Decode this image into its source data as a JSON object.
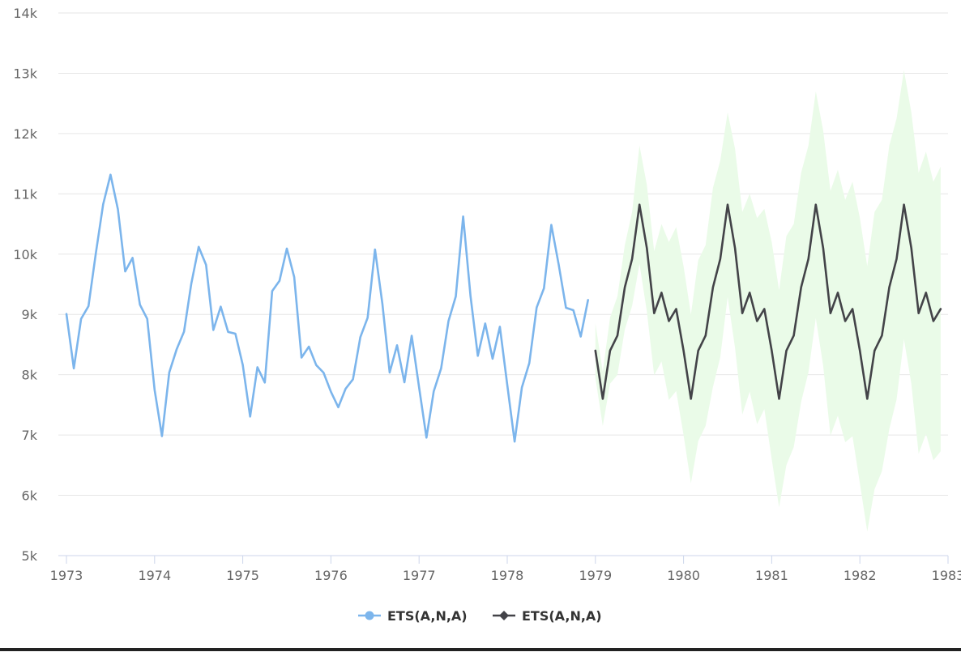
{
  "chart_data": {
    "type": "line",
    "title": "",
    "xlabel": "",
    "ylabel": "",
    "xlim": [
      1973,
      1983
    ],
    "ylim": [
      5000,
      14000
    ],
    "x_ticks": [
      "1973",
      "1974",
      "1975",
      "1976",
      "1977",
      "1978",
      "1979",
      "1980",
      "1981",
      "1982",
      "1983"
    ],
    "y_ticks": [
      "5k",
      "6k",
      "7k",
      "8k",
      "9k",
      "10k",
      "11k",
      "12k",
      "13k",
      "14k"
    ],
    "grid": true,
    "legend_position": "bottom-center",
    "series": [
      {
        "name": "ETS(A,N,A)",
        "role": "actual",
        "color": "#7cb5ec",
        "marker": "circle",
        "x_start": 1973,
        "step": 0.0833333,
        "values": [
          9007,
          8106,
          8928,
          9137,
          10017,
          10826,
          11317,
          10744,
          9713,
          9938,
          9161,
          8927,
          7750,
          6981,
          8038,
          8422,
          8714,
          9512,
          10120,
          9823,
          8743,
          9129,
          8710,
          8680,
          8162,
          7306,
          8124,
          7870,
          9387,
          9556,
          10093,
          9620,
          8285,
          8466,
          8160,
          8034,
          7717,
          7461,
          7767,
          7925,
          8623,
          8945,
          10078,
          9179,
          8037,
          8488,
          7874,
          8647,
          7792,
          6957,
          7726,
          8106,
          8890,
          9299,
          10625,
          9302,
          8314,
          8850,
          8265,
          8796,
          7836,
          6892,
          7791,
          8192,
          9115,
          9434,
          10484,
          9827,
          9110,
          9070,
          8633,
          9240
        ]
      },
      {
        "name": "ETS(A,N,A)",
        "role": "forecast",
        "color": "#434348",
        "marker": "diamond",
        "x_start": 1979,
        "step": 0.0833333,
        "values": [
          8400,
          7600,
          8400,
          8650,
          9450,
          9920,
          10820,
          10100,
          9020,
          9360,
          8890,
          9090,
          8400,
          7600,
          8400,
          8650,
          9450,
          9920,
          10820,
          10100,
          9020,
          9360,
          8890,
          9090,
          8400,
          7600,
          8400,
          8650,
          9450,
          9920,
          10820,
          10100,
          9020,
          9360,
          8890,
          9090,
          8400,
          7600,
          8400,
          8650,
          9450,
          9920,
          10820,
          10100,
          9020,
          9360,
          8890,
          9090
        ]
      }
    ],
    "interval": {
      "color": "#eafbe8",
      "x_start": 1979,
      "step": 0.0833333,
      "upper": [
        8850,
        8050,
        8950,
        9300,
        10150,
        10700,
        11800,
        11150,
        10050,
        10500,
        10200,
        10450,
        9800,
        9000,
        9900,
        10150,
        11100,
        11550,
        12350,
        11750,
        10700,
        11000,
        10600,
        10750,
        10200,
        9400,
        10300,
        10500,
        11350,
        11800,
        12700,
        12050,
        11050,
        11400,
        10900,
        11200,
        10600,
        9800,
        10700,
        10900,
        11800,
        12250,
        13050,
        12350,
        11350,
        11700,
        11200,
        11450
      ],
      "lower": [
        7950,
        7150,
        7850,
        8000,
        8750,
        9140,
        9840,
        9050,
        7990,
        8220,
        7580,
        7730,
        7000,
        6200,
        6900,
        7150,
        7800,
        8290,
        9290,
        8450,
        7340,
        7720,
        7180,
        7430,
        6600,
        5800,
        6500,
        6800,
        7550,
        8040,
        8940,
        8150,
        6990,
        7320,
        6880,
        6980,
        6200,
        5400,
        6100,
        6400,
        7100,
        7590,
        8590,
        7850,
        6690,
        7020,
        6580,
        6730
      ]
    }
  }
}
